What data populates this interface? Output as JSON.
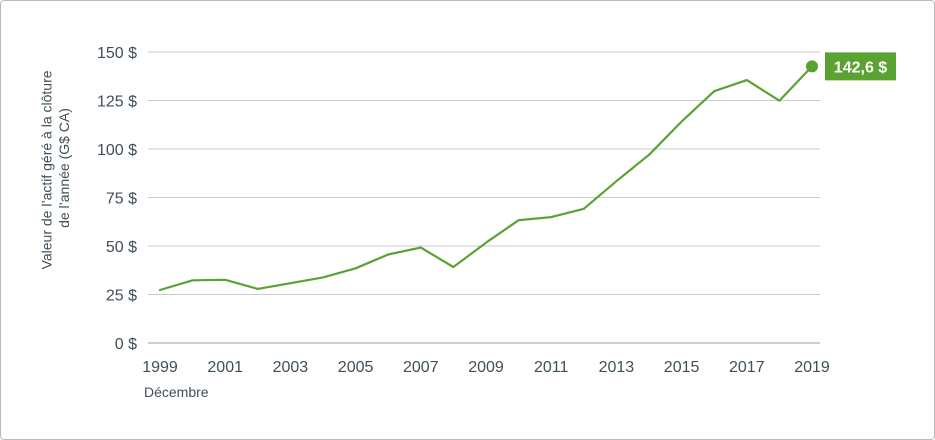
{
  "chart_data": {
    "type": "line",
    "xlabel": "Décembre",
    "ylabel_lines": [
      "Valeur de l’actif géré à la clôture",
      "de l’année (G$ CA)"
    ],
    "ylim": [
      0,
      150
    ],
    "yticks": [
      0,
      25,
      50,
      75,
      100,
      125,
      150
    ],
    "ytick_labels": [
      "0 $",
      "25 $",
      "50 $",
      "75 $",
      "100 $",
      "125 $",
      "150 $"
    ],
    "xlim": [
      1999,
      2019
    ],
    "xticks": [
      1999,
      2001,
      2003,
      2005,
      2007,
      2009,
      2011,
      2013,
      2015,
      2017,
      2019
    ],
    "xtick_labels": [
      "1999",
      "2001",
      "2003",
      "2005",
      "2007",
      "2009",
      "2011",
      "2013",
      "2015",
      "2017",
      "2019"
    ],
    "grid": true,
    "series": [
      {
        "color": "#5aa332",
        "x": [
          1999,
          2000,
          2001,
          2002,
          2003,
          2004,
          2005,
          2006,
          2007,
          2008,
          2009,
          2010,
          2011,
          2012,
          2013,
          2014,
          2015,
          2016,
          2017,
          2018,
          2019
        ],
        "y": [
          27.3,
          32.3,
          32.6,
          27.9,
          30.8,
          33.8,
          38.5,
          45.6,
          49.2,
          39.2,
          51.7,
          63.3,
          64.9,
          69.2,
          83.4,
          97.0,
          114.1,
          129.8,
          135.5,
          124.9,
          142.6
        ]
      }
    ],
    "annotation": {
      "x": 2019,
      "y": 142.6,
      "text": "142,6 $",
      "color": "#5aa332"
    }
  }
}
